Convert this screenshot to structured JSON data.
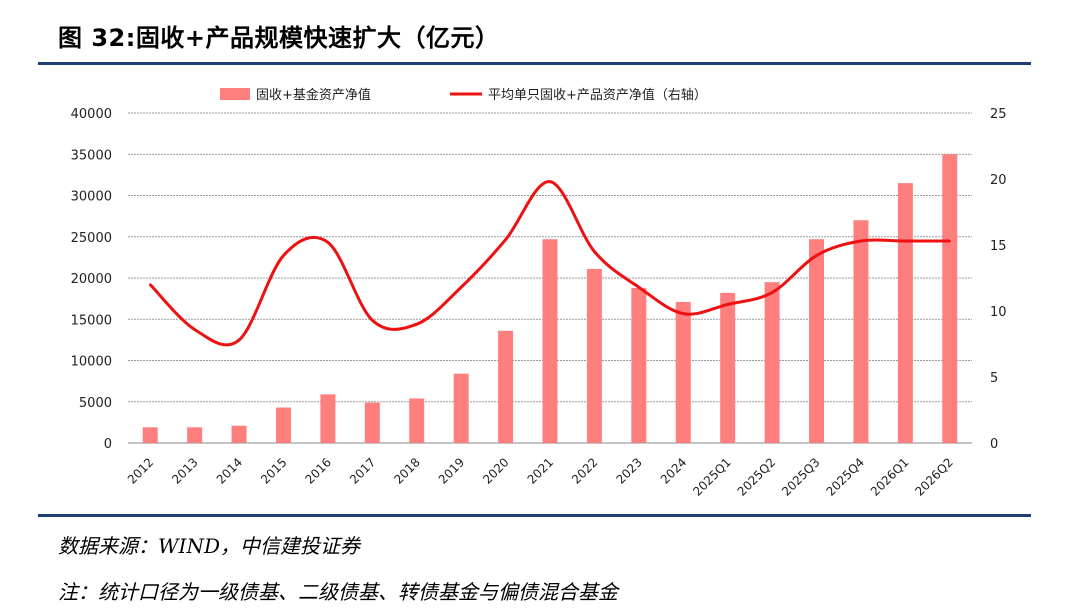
{
  "figure": {
    "title": "图 32:固收+产品规模快速扩大（亿元）",
    "source": "数据来源：WIND，中信建投证券",
    "note": "注：统计口径为一级债基、二级债基、转债基金与偏债混合基金"
  },
  "chart_data": {
    "type": "bar",
    "title": "",
    "xlabel": "",
    "ylabel": "",
    "categories": [
      "2012",
      "2013",
      "2014",
      "2015",
      "2016",
      "2017",
      "2018",
      "2019",
      "2020",
      "2021",
      "2022",
      "2023",
      "2024",
      "2025Q1",
      "2025Q2",
      "2025Q3",
      "2025Q4",
      "2026Q1",
      "2026Q2"
    ],
    "ylim": [
      0,
      40000
    ],
    "y_ticks": [
      0,
      5000,
      10000,
      15000,
      20000,
      25000,
      30000,
      35000,
      40000
    ],
    "y2lim": [
      0,
      25
    ],
    "y2_ticks": [
      0,
      5,
      10,
      15,
      20,
      25
    ],
    "grid": true,
    "legend_position": "top",
    "series": [
      {
        "name": "固收+基金资产净值",
        "type": "bar",
        "axis": "left",
        "color": "#ff7f7f",
        "values": [
          1900,
          1900,
          2100,
          4300,
          5900,
          4900,
          5400,
          8400,
          13600,
          24700,
          21100,
          18800,
          17100,
          18200,
          19500,
          24700,
          27000,
          31500,
          35000
        ]
      },
      {
        "name": "平均单只固收+产品资产净值（右轴）",
        "type": "line",
        "axis": "right",
        "color": "#ee1111",
        "values": [
          12.0,
          8.6,
          7.8,
          14.2,
          15.2,
          9.3,
          9.0,
          11.8,
          15.4,
          19.8,
          14.5,
          11.8,
          9.8,
          10.5,
          11.4,
          14.2,
          15.3,
          15.3,
          15.3
        ]
      }
    ]
  }
}
